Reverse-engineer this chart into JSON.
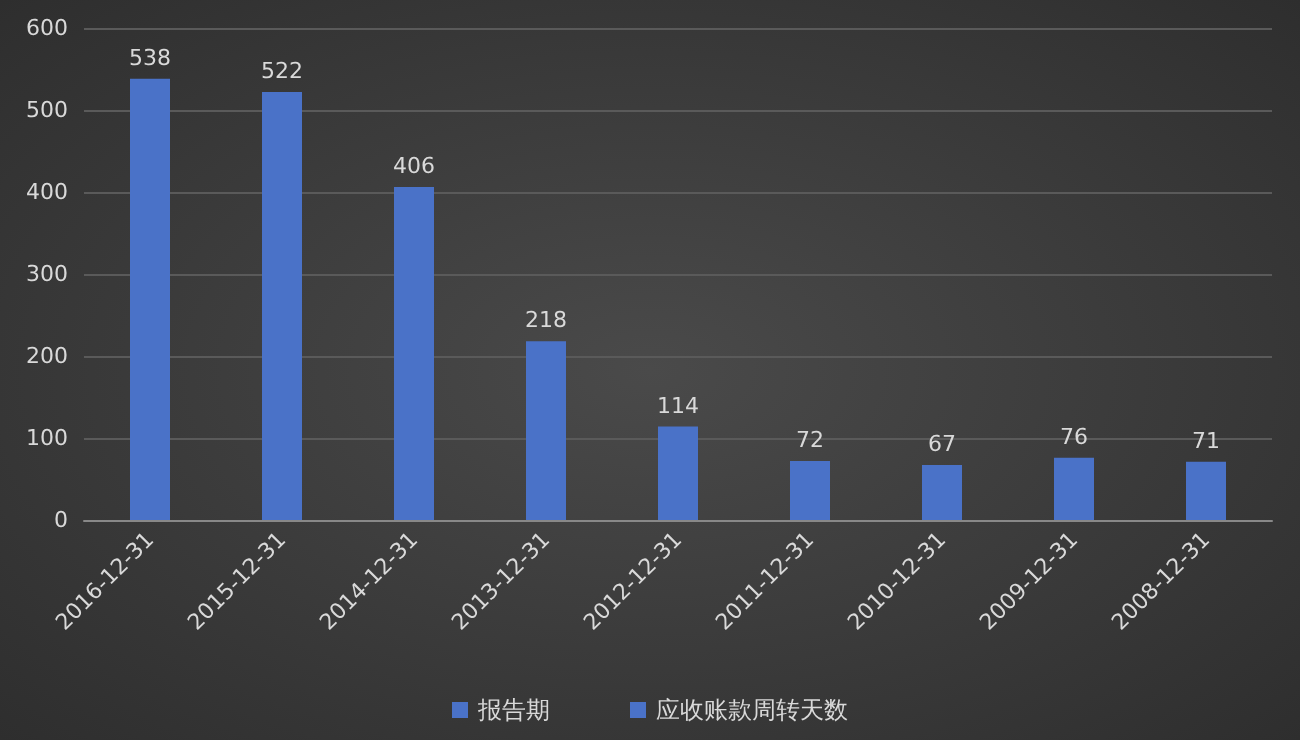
{
  "chart_data": {
    "type": "bar",
    "categories": [
      "2016-12-31",
      "2015-12-31",
      "2014-12-31",
      "2013-12-31",
      "2012-12-31",
      "2011-12-31",
      "2010-12-31",
      "2009-12-31",
      "2008-12-31"
    ],
    "series": [
      {
        "name": "报告期",
        "color": "#4a72c8",
        "values": [
          null,
          null,
          null,
          null,
          null,
          null,
          null,
          null,
          null
        ]
      },
      {
        "name": "应收账款周转天数",
        "color": "#4a72c8",
        "values": [
          538,
          522,
          406,
          218,
          114,
          72,
          67,
          76,
          71
        ]
      }
    ],
    "ylim": [
      0,
      600
    ],
    "yticks": [
      0,
      100,
      200,
      300,
      400,
      500,
      600
    ],
    "grid": "y",
    "legend": "bottom",
    "data_labels": true
  }
}
